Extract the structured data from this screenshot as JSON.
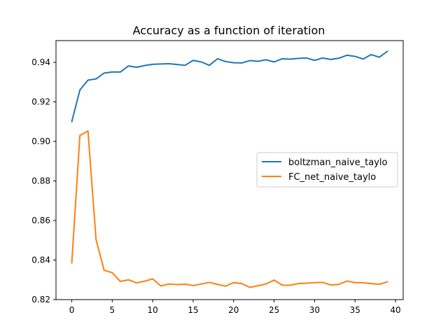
{
  "chart_data": {
    "type": "line",
    "title": "Accuracy as a function of iteration",
    "xlabel": "",
    "ylabel": "",
    "xlim": [
      -1.95,
      40.95
    ],
    "ylim": [
      0.82,
      0.951
    ],
    "xticks": [
      0,
      5,
      10,
      15,
      20,
      25,
      30,
      35,
      40
    ],
    "yticks": [
      0.82,
      0.84,
      0.86,
      0.88,
      0.9,
      0.92,
      0.94
    ],
    "ytick_labels": [
      "0.82",
      "0.84",
      "0.86",
      "0.88",
      "0.90",
      "0.92",
      "0.94"
    ],
    "grid": false,
    "legend_position": "center-right",
    "x": [
      0,
      1,
      2,
      3,
      4,
      5,
      6,
      7,
      8,
      9,
      10,
      11,
      12,
      13,
      14,
      15,
      16,
      17,
      18,
      19,
      20,
      21,
      22,
      23,
      24,
      25,
      26,
      27,
      28,
      29,
      30,
      31,
      32,
      33,
      34,
      35,
      36,
      37,
      38,
      39
    ],
    "series": [
      {
        "name": "boltzman_naive_taylo",
        "color": "#1f77b4",
        "values": [
          0.91,
          0.926,
          0.931,
          0.9316,
          0.9346,
          0.9351,
          0.9351,
          0.9382,
          0.9375,
          0.9384,
          0.939,
          0.9392,
          0.9393,
          0.9389,
          0.9385,
          0.941,
          0.9402,
          0.9385,
          0.9418,
          0.9404,
          0.9398,
          0.9397,
          0.9409,
          0.9405,
          0.9413,
          0.9402,
          0.9418,
          0.9416,
          0.942,
          0.9422,
          0.941,
          0.9422,
          0.9415,
          0.9421,
          0.9436,
          0.943,
          0.9417,
          0.9439,
          0.9426,
          0.9456
        ]
      },
      {
        "name": "FC_net_naive_taylo",
        "color": "#ff7f0e",
        "values": [
          0.8385,
          0.903,
          0.9053,
          0.8503,
          0.8348,
          0.8336,
          0.8292,
          0.83,
          0.8285,
          0.8293,
          0.8305,
          0.8269,
          0.8279,
          0.8276,
          0.8278,
          0.8271,
          0.8279,
          0.8287,
          0.8277,
          0.8268,
          0.8286,
          0.8281,
          0.8262,
          0.827,
          0.8279,
          0.8299,
          0.8273,
          0.8273,
          0.8281,
          0.8283,
          0.8286,
          0.8287,
          0.8274,
          0.8277,
          0.8294,
          0.8286,
          0.8285,
          0.8281,
          0.8277,
          0.829
        ]
      }
    ]
  }
}
